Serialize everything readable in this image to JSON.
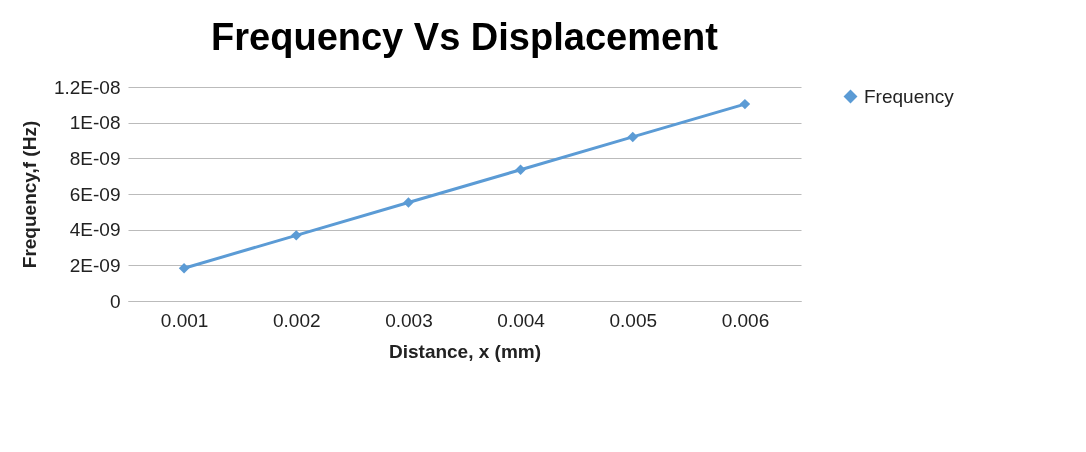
{
  "chart_data": {
    "type": "line",
    "title": "Frequency Vs Displacement",
    "xlabel": "Distance, x (mm)",
    "ylabel": "Frequency,f (Hz)",
    "categories": [
      "0.001",
      "0.002",
      "0.003",
      "0.004",
      "0.005",
      "0.006"
    ],
    "series": [
      {
        "name": "Frequency",
        "color": "#5b9bd5",
        "values": [
          1.84e-09,
          3.68e-09,
          5.52e-09,
          7.36e-09,
          9.2e-09,
          1.104e-08
        ]
      }
    ],
    "ylim": [
      0,
      1.2e-08
    ],
    "yticks": [
      0,
      {
        "value": 2e-09,
        "label": "2E-09"
      },
      {
        "value": 4e-09,
        "label": "4E-09"
      },
      {
        "value": 6e-09,
        "label": "6E-09"
      },
      {
        "value": 8e-09,
        "label": "8E-09"
      },
      {
        "value": 1e-08,
        "label": "1E-08"
      },
      {
        "value": 1.2e-08,
        "label": "1.2E-08"
      }
    ],
    "grid": "y",
    "legend": "right",
    "marker": "diamond"
  }
}
